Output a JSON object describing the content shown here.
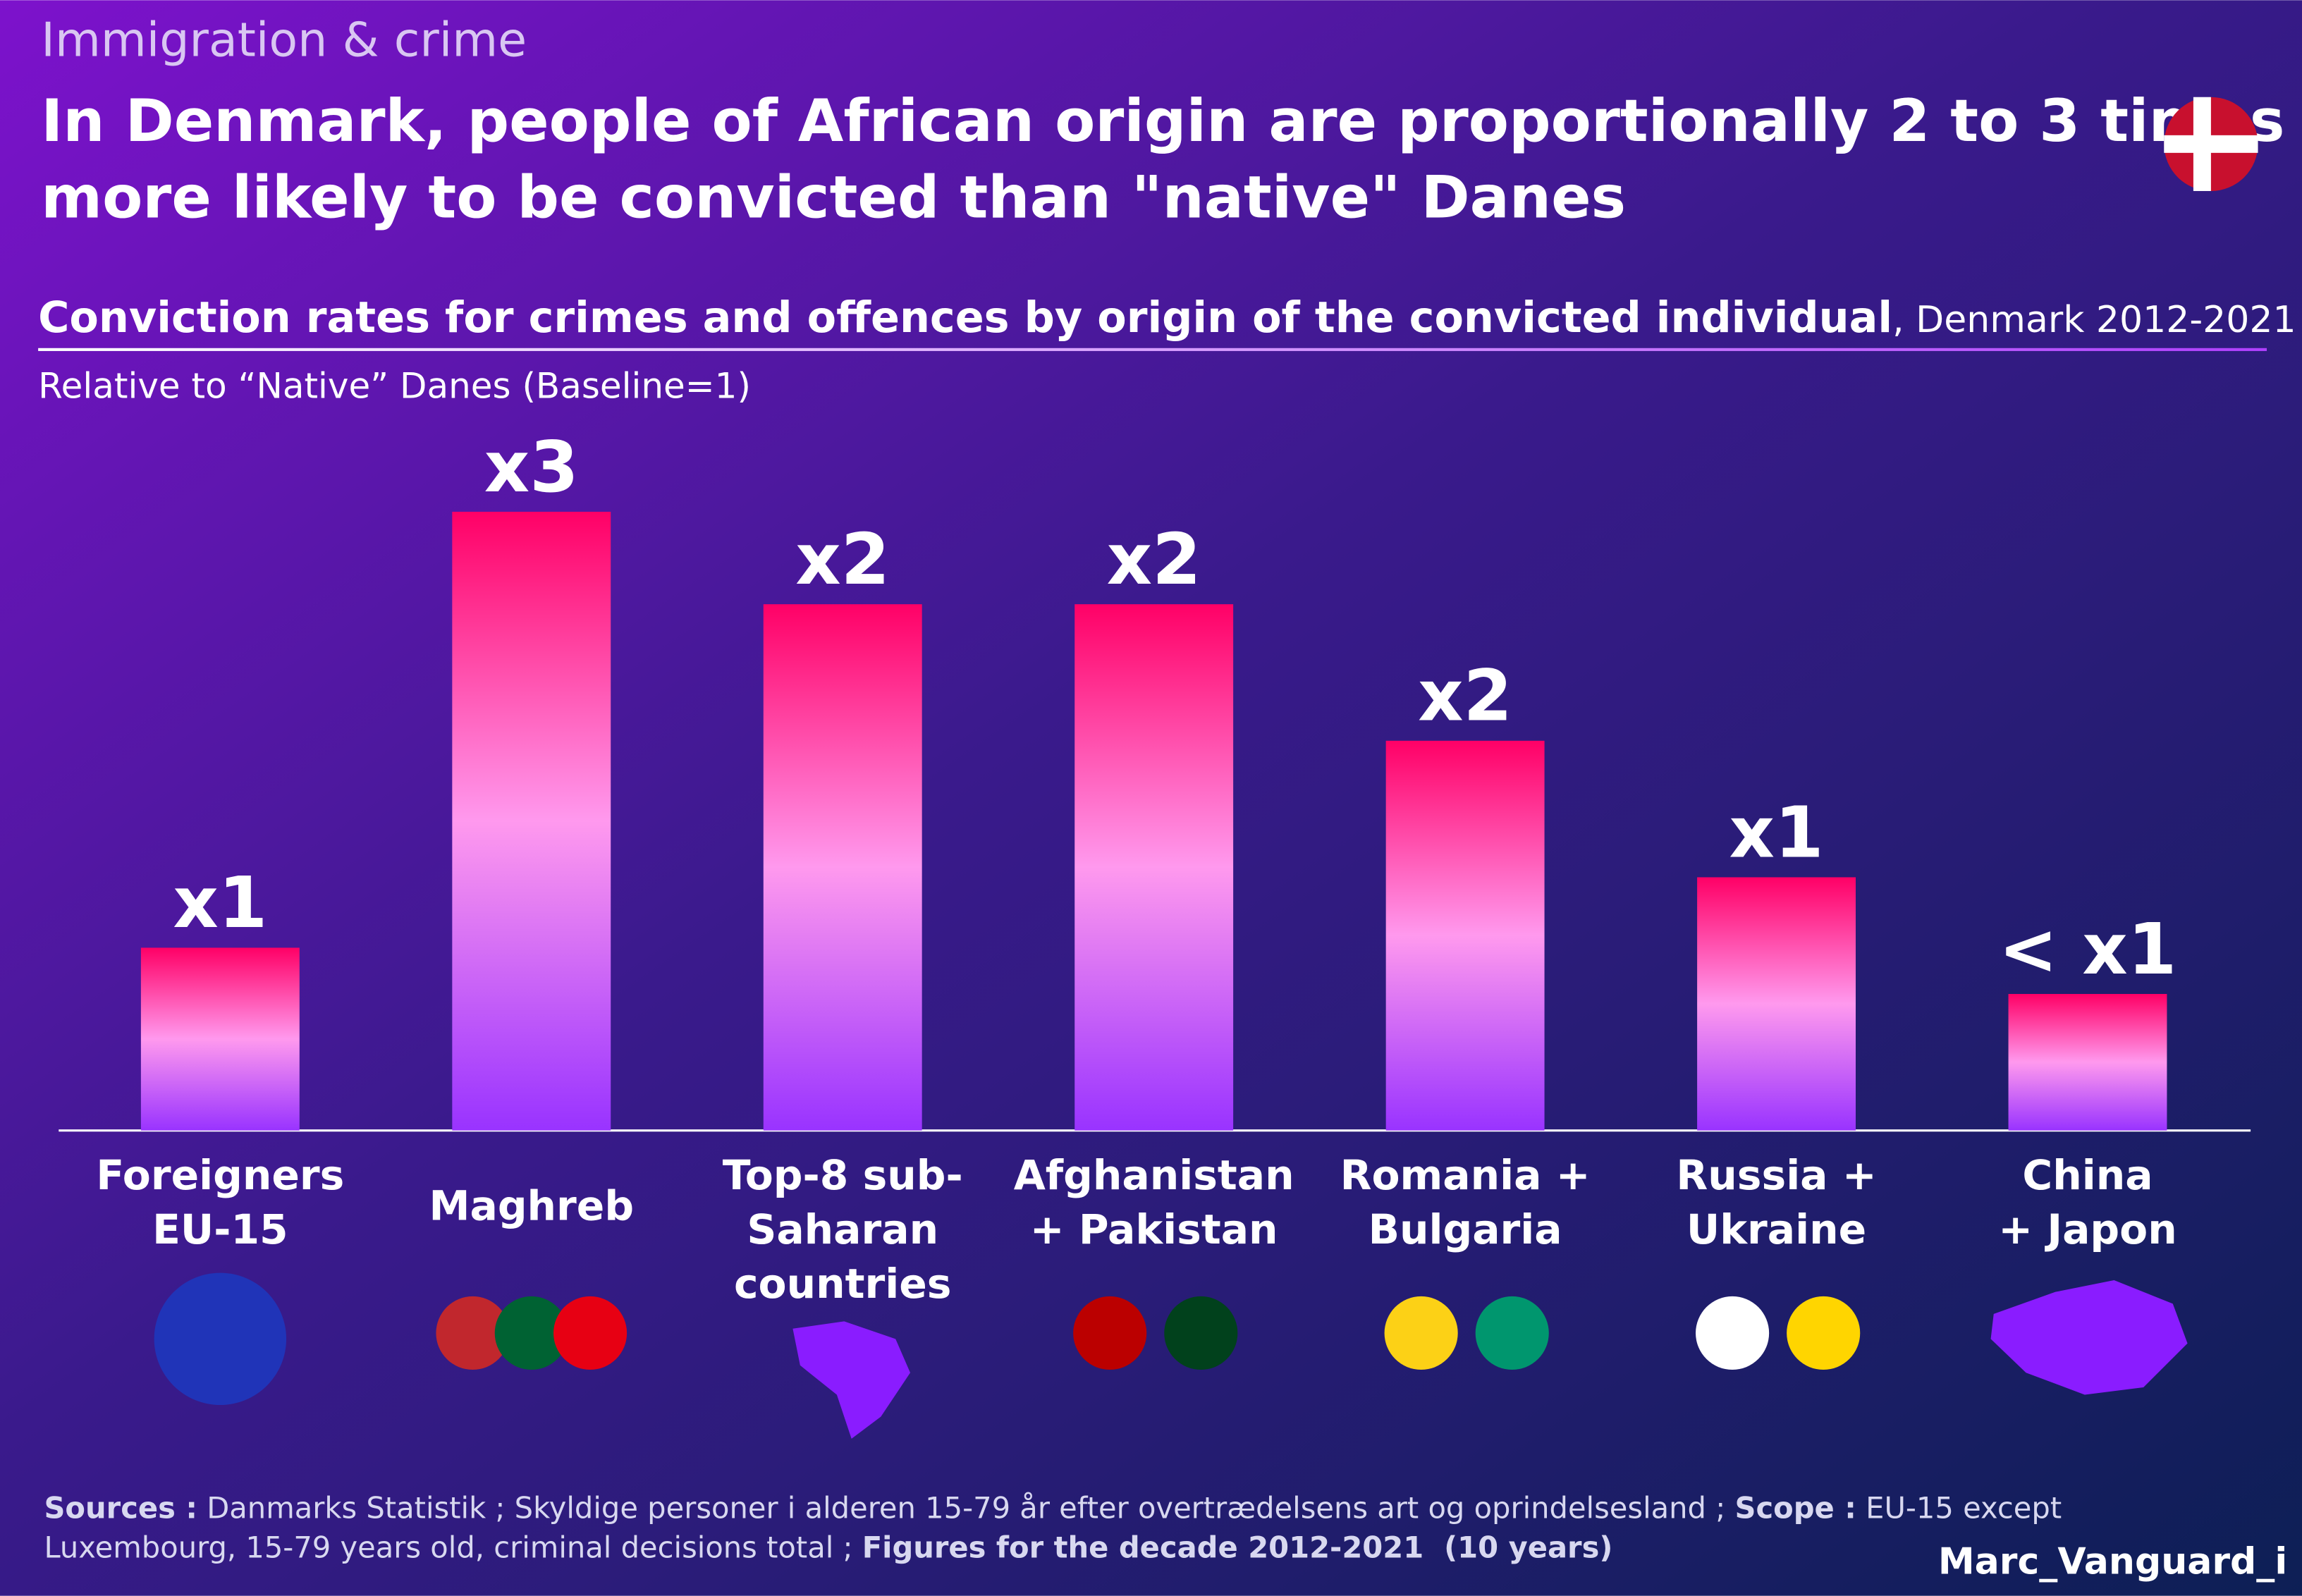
{
  "header": {
    "kicker": "Immigration & crime",
    "title": [
      "In Denmark, people of African origin are proportionally 2 to 3 times",
      "more likely to be convicted than \"native\" Danes"
    ]
  },
  "chart_data": {
    "type": "bar",
    "title": "Conviction rates for crimes and offences by origin of the convicted individual",
    "title_period": ", Denmark 2012-2021",
    "y_label": "Relative to “Native” Danes (Baseline=1)",
    "categories": [
      [
        "Foreigners",
        "EU-15"
      ],
      [
        "Maghreb"
      ],
      [
        "Top-8 sub-",
        "Saharan",
        "countries"
      ],
      [
        "Afghanistan",
        "+ Pakistan"
      ],
      [
        "Romania +",
        "Bulgaria"
      ],
      [
        "Russia +",
        "Ukraine"
      ],
      [
        "China",
        "+ Japon"
      ]
    ],
    "values": [
      0.83,
      2.81,
      2.39,
      2.39,
      1.77,
      1.15,
      0.62
    ],
    "value_labels": [
      "x1",
      "x3",
      "x2",
      "x2",
      "x2",
      "x1",
      "< x1"
    ],
    "colors": [
      "#ff0066",
      "#ff99ee",
      "#9933ff"
    ],
    "ylim": [
      0,
      3.5
    ]
  },
  "footer": {
    "lines": [
      [
        {
          "text": "Sources :",
          "bold": true
        },
        {
          "text": " Danmarks Statistik ; Skyldige personer i alderen 15-79 år efter overtrædelsens art og oprindelsesland ; ",
          "bold": false
        },
        {
          "text": "Scope :",
          "bold": true
        },
        {
          "text": " EU-15 except",
          "bold": false
        }
      ],
      [
        {
          "text": "Luxembourg, 15-79 years old, criminal decisions total ; ",
          "bold": false
        },
        {
          "text": "Figures for the decade 2012-2021  (10 years)",
          "bold": true
        }
      ]
    ],
    "author": "Marc_Vanguard_i"
  }
}
